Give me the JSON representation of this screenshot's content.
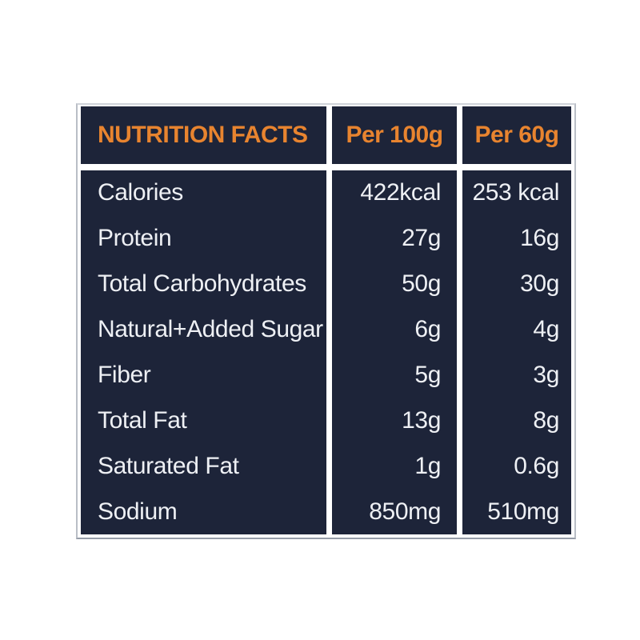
{
  "table": {
    "title": "NUTRITION FACTS",
    "columns": [
      "Per 100g",
      "Per 60g"
    ],
    "rows": [
      {
        "label": "Calories",
        "per_100g": "422kcal",
        "per_60g": "253 kcal"
      },
      {
        "label": "Protein",
        "per_100g": "27g",
        "per_60g": "16g"
      },
      {
        "label": "Total Carbohydrates",
        "per_100g": "50g",
        "per_60g": "30g"
      },
      {
        "label": "Natural+Added Sugar",
        "per_100g": "6g",
        "per_60g": "4g"
      },
      {
        "label": "Fiber",
        "per_100g": "5g",
        "per_60g": "3g"
      },
      {
        "label": "Total Fat",
        "per_100g": "13g",
        "per_60g": "8g"
      },
      {
        "label": "Saturated Fat",
        "per_100g": "1g",
        "per_60g": "0.6g"
      },
      {
        "label": "Sodium",
        "per_100g": "850mg",
        "per_60g": "510mg"
      }
    ],
    "colors": {
      "panel": "#1d2439",
      "accent": "#e8842f",
      "text": "#eef0f4",
      "gutter": "#ffffff",
      "frame_border": "#b9bec6",
      "frame_border_bottom": "#969ca8",
      "page_background": "#ffffff"
    }
  }
}
